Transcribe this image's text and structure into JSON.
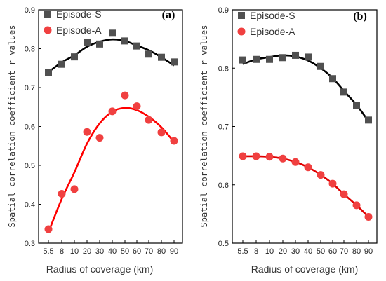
{
  "chart_data": [
    {
      "type": "scatter",
      "panel_label": "(a)",
      "xlabel": "Radius of coverage (km)",
      "ylabel": "Spatial correlation coefficient r values",
      "x_ticks": [
        "5.5",
        "8",
        "10",
        "20",
        "30",
        "40",
        "50",
        "60",
        "70",
        "80",
        "90"
      ],
      "y_ticks": [
        "0.3",
        "0.4",
        "0.5",
        "0.6",
        "0.7",
        "0.8",
        "0.9"
      ],
      "ylim": [
        0.3,
        0.9
      ],
      "legend_position": "top-left",
      "series": [
        {
          "name": "Episode-S",
          "marker": "square",
          "color": "#505050",
          "fit_color": "#000000",
          "values": [
            0.739,
            0.76,
            0.779,
            0.817,
            0.812,
            0.84,
            0.82,
            0.807,
            0.786,
            0.778,
            0.766
          ],
          "fit": [
            0.74,
            0.765,
            0.783,
            0.805,
            0.818,
            0.824,
            0.82,
            0.808,
            0.796,
            0.778,
            0.757
          ]
        },
        {
          "name": "Episode-A",
          "marker": "circle",
          "color": "#f04040",
          "fit_color": "#ff0000",
          "values": [
            0.336,
            0.427,
            0.439,
            0.586,
            0.571,
            0.639,
            0.68,
            0.652,
            0.617,
            0.585,
            0.563
          ],
          "fit": [
            0.328,
            0.414,
            0.482,
            0.556,
            0.608,
            0.638,
            0.648,
            0.642,
            0.625,
            0.598,
            0.56
          ]
        }
      ]
    },
    {
      "type": "scatter",
      "panel_label": "(b)",
      "xlabel": "Radius of coverage (km)",
      "ylabel": "Spatial correlation coefficient r values",
      "x_ticks": [
        "5.5",
        "8",
        "10",
        "20",
        "30",
        "40",
        "50",
        "60",
        "70",
        "80",
        "90"
      ],
      "y_ticks": [
        "0.5",
        "0.6",
        "0.7",
        "0.8",
        "0.9"
      ],
      "ylim": [
        0.5,
        0.9
      ],
      "legend_position": "top-left",
      "series": [
        {
          "name": "Episode-S",
          "marker": "square",
          "color": "#505050",
          "fit_color": "#000000",
          "values": [
            0.814,
            0.815,
            0.815,
            0.818,
            0.822,
            0.819,
            0.803,
            0.782,
            0.759,
            0.736,
            0.711
          ],
          "fit": [
            0.807,
            0.815,
            0.819,
            0.822,
            0.82,
            0.813,
            0.8,
            0.783,
            0.761,
            0.737,
            0.709
          ]
        },
        {
          "name": "Episode-A",
          "marker": "circle",
          "color": "#f04040",
          "fit_color": "#e00000",
          "values": [
            0.649,
            0.649,
            0.648,
            0.645,
            0.639,
            0.63,
            0.617,
            0.602,
            0.584,
            0.565,
            0.545
          ],
          "fit": [
            0.649,
            0.649,
            0.648,
            0.645,
            0.639,
            0.63,
            0.617,
            0.602,
            0.584,
            0.565,
            0.545
          ]
        }
      ]
    }
  ]
}
